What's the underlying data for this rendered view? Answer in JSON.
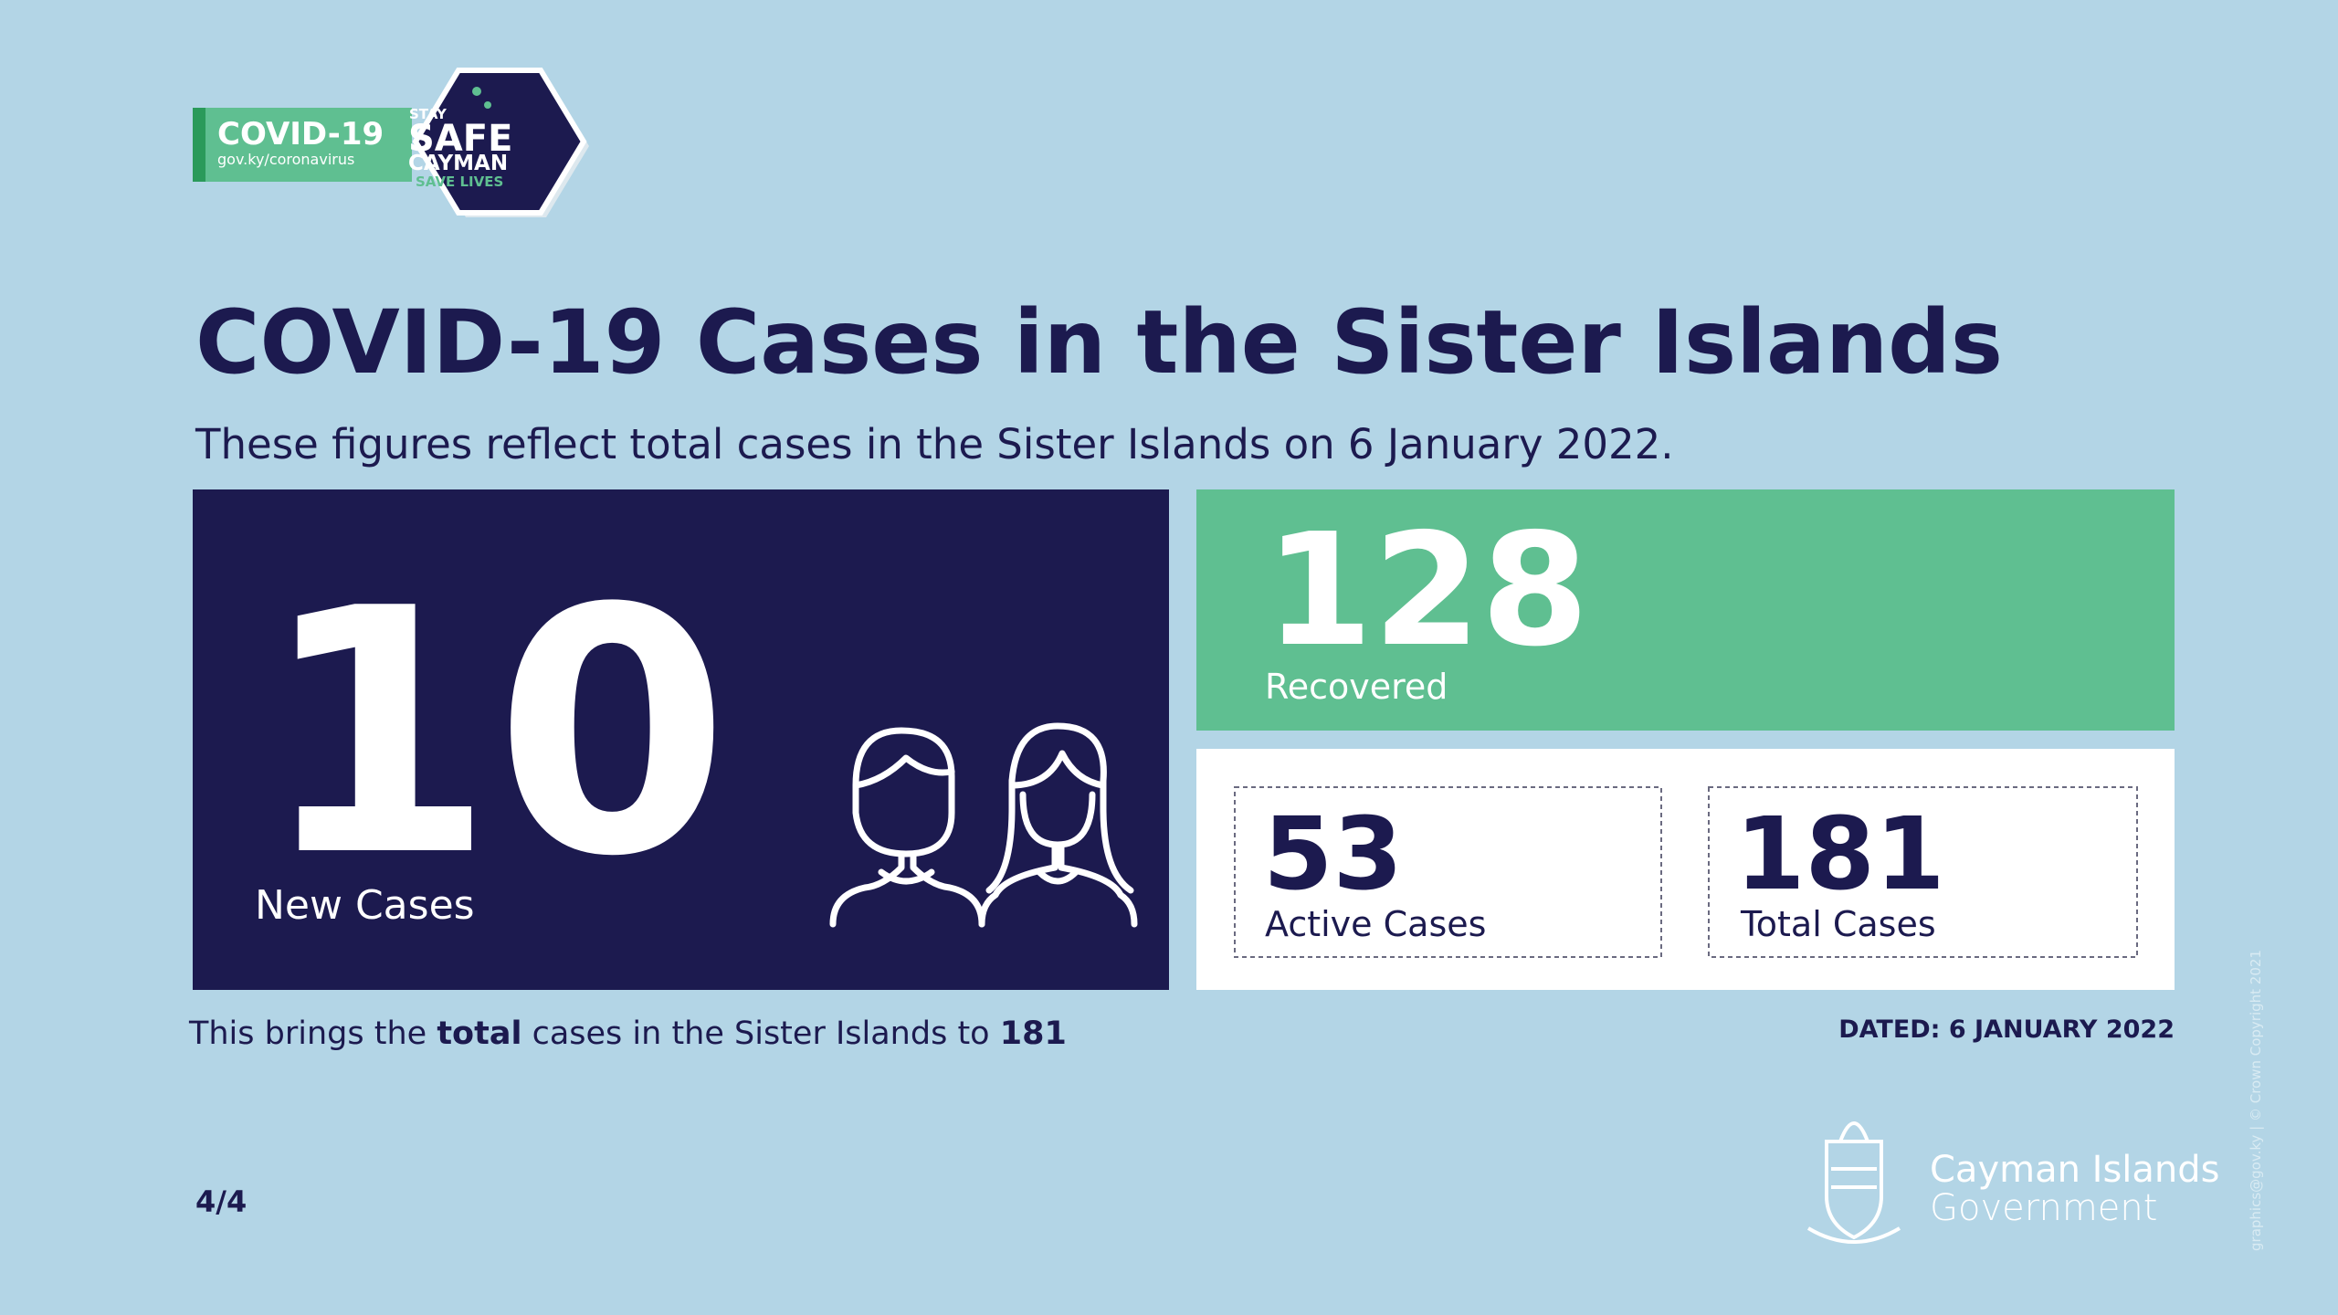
{
  "badge": {
    "label": "COVID-19",
    "url": "gov.ky/coronavirus",
    "stay": "STAY",
    "safe": "SAFE",
    "cayman": "CAYMAN",
    "save": "SAVE LIVES"
  },
  "title": "COVID-19 Cases in the Sister Islands",
  "subtitle": "These figures reflect total cases in the Sister Islands on 6 January 2022.",
  "stats": {
    "new_cases": {
      "value": 10,
      "label": "New Cases"
    },
    "recovered": {
      "value": 128,
      "label": "Recovered"
    },
    "active": {
      "value": 53,
      "label": "Active Cases"
    },
    "total": {
      "value": 181,
      "label": "Total Cases"
    }
  },
  "footer": {
    "prefix": "This brings the",
    "bold": "total",
    "suffix": "cases in the Sister Islands to",
    "total": 181
  },
  "dated": "DATED: 6 JANUARY 2022",
  "page": "4/4",
  "government": {
    "line1": "Cayman Islands",
    "line2": "Government"
  },
  "copyright": "graphics@gov.ky | © Crown Copyright 2021"
}
